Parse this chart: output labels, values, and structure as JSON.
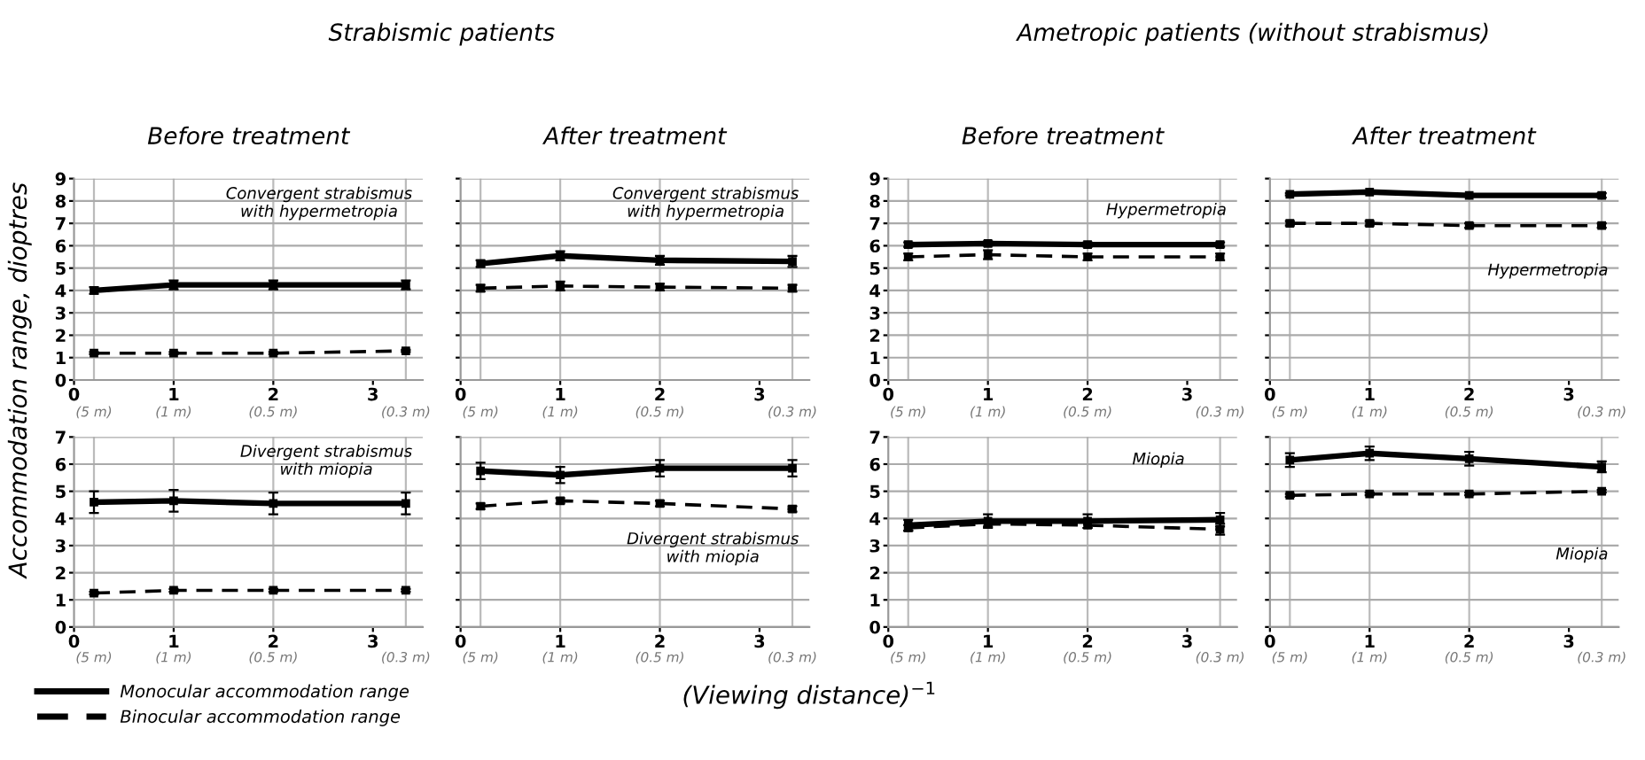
{
  "chart_data": [
    {
      "type": "line",
      "title": "Strabismic patients",
      "subtitle": "Before treatment",
      "ylabel": "Accommodation range, dioptres",
      "annotations": [
        "Convergent strabismus\nwith hypermetropia",
        "(5 m)",
        "(1 m)",
        "(0.5 m)",
        "(0.3 m)"
      ],
      "x": [
        0.2,
        1,
        2,
        3.33
      ],
      "xlim": [
        0,
        3.5
      ],
      "xticks": [
        0,
        1,
        2,
        3
      ],
      "ylim": [
        0,
        9
      ],
      "yticks": [
        0,
        1,
        2,
        3,
        4,
        5,
        6,
        7,
        8,
        9
      ],
      "grid": true,
      "marker": "square",
      "series": [
        {
          "color": "#000000",
          "line_style": "solid",
          "values": [
            4.0,
            4.25,
            4.25,
            4.25
          ],
          "errors": [
            0.15,
            0.2,
            0.2,
            0.2
          ]
        },
        {
          "color": "#000000",
          "line_style": "dashed",
          "values": [
            1.2,
            1.2,
            1.2,
            1.3
          ],
          "errors": [
            0.05,
            0.05,
            0.05,
            0.05
          ]
        }
      ]
    },
    {
      "type": "line",
      "subtitle": "After treatment",
      "annotations": [
        "Convergent strabismus\nwith hypermetropia",
        "(5 m)",
        "(1 m)",
        "(0.5 m)",
        "(0.3 m)"
      ],
      "x": [
        0.2,
        1,
        2,
        3.33
      ],
      "xlim": [
        0,
        3.5
      ],
      "xticks": [
        0,
        1,
        2,
        3
      ],
      "ylim": [
        0,
        9
      ],
      "yticks": [
        0,
        1,
        2,
        3,
        4,
        5,
        6,
        7,
        8,
        9
      ],
      "tick_labels": "x",
      "grid": true,
      "marker": "square",
      "series": [
        {
          "color": "#000000",
          "line_style": "solid",
          "values": [
            5.2,
            5.55,
            5.35,
            5.3
          ],
          "errors": [
            0.15,
            0.2,
            0.2,
            0.25
          ]
        },
        {
          "color": "#000000",
          "line_style": "dashed",
          "values": [
            4.1,
            4.2,
            4.15,
            4.1
          ],
          "errors": [
            0.15,
            0.2,
            0.15,
            0.15
          ]
        }
      ]
    },
    {
      "type": "line",
      "title": "Ametropic patients (without strabismus)",
      "subtitle": "Before treatment",
      "annotations": [
        "Hypermetropia",
        "(5 m)",
        "(1 m)",
        "(0.5 m)",
        "(0.3 m)"
      ],
      "x": [
        0.2,
        1,
        2,
        3.33
      ],
      "xlim": [
        0,
        3.5
      ],
      "xticks": [
        0,
        1,
        2,
        3
      ],
      "ylim": [
        0,
        9
      ],
      "yticks": [
        0,
        1,
        2,
        3,
        4,
        5,
        6,
        7,
        8,
        9
      ],
      "grid": true,
      "marker": "square",
      "series": [
        {
          "color": "#000000",
          "line_style": "solid",
          "values": [
            6.05,
            6.1,
            6.05,
            6.05
          ],
          "errors": [
            0.1,
            0.1,
            0.1,
            0.1
          ]
        },
        {
          "color": "#000000",
          "line_style": "dashed",
          "values": [
            5.5,
            5.6,
            5.5,
            5.5
          ],
          "errors": [
            0.15,
            0.2,
            0.15,
            0.15
          ]
        }
      ]
    },
    {
      "type": "line",
      "subtitle": "After treatment",
      "annotations": [
        "Hypermetropia",
        "(5 m)",
        "(1 m)",
        "(0.5 m)",
        "(0.3 m)"
      ],
      "x": [
        0.2,
        1,
        2,
        3.33
      ],
      "xlim": [
        0,
        3.5
      ],
      "xticks": [
        0,
        1,
        2,
        3
      ],
      "ylim": [
        0,
        9
      ],
      "yticks": [
        0,
        1,
        2,
        3,
        4,
        5,
        6,
        7,
        8,
        9
      ],
      "tick_labels": "x",
      "grid": true,
      "marker": "square",
      "series": [
        {
          "color": "#000000",
          "line_style": "solid",
          "values": [
            8.3,
            8.4,
            8.25,
            8.25
          ],
          "errors": [
            0.05,
            0.05,
            0.05,
            0.1
          ]
        },
        {
          "color": "#000000",
          "line_style": "dashed",
          "values": [
            7.0,
            7.0,
            6.9,
            6.9
          ],
          "errors": [
            0.1,
            0.1,
            0.1,
            0.1
          ]
        }
      ]
    },
    {
      "type": "line",
      "annotations": [
        "Divergent strabismus\nwith miopia",
        "(5 m)",
        "(1 m)",
        "(0.5 m)",
        "(0.3 m)"
      ],
      "x": [
        0.2,
        1,
        2,
        3.33
      ],
      "xlim": [
        0,
        3.5
      ],
      "xticks": [
        0,
        1,
        2,
        3
      ],
      "ylim": [
        0,
        7
      ],
      "yticks": [
        0,
        1,
        2,
        3,
        4,
        5,
        6,
        7
      ],
      "grid": true,
      "marker": "square",
      "legend": "bottom",
      "series": [
        {
          "name": "Monocular accommodation range",
          "color": "#000000",
          "line_style": "solid",
          "values": [
            4.6,
            4.65,
            4.55,
            4.55
          ],
          "errors": [
            0.4,
            0.4,
            0.4,
            0.4
          ]
        },
        {
          "name": "Binocular accommodation range",
          "color": "#000000",
          "line_style": "dashed",
          "values": [
            1.25,
            1.35,
            1.35,
            1.35
          ],
          "errors": [
            0.05,
            0.05,
            0.05,
            0.05
          ]
        }
      ]
    },
    {
      "type": "line",
      "xlabel": "(Viewing distance)$^{−1}$",
      "annotations": [
        "Divergent strabismus\nwith miopia",
        "(5 m)",
        "(1 m)",
        "(0.5 m)",
        "(0.3 m)"
      ],
      "x": [
        0.2,
        1,
        2,
        3.33
      ],
      "xlim": [
        0,
        3.5
      ],
      "xticks": [
        0,
        1,
        2,
        3
      ],
      "ylim": [
        0,
        7
      ],
      "yticks": [
        0,
        1,
        2,
        3,
        4,
        5,
        6,
        7
      ],
      "tick_labels": "x",
      "grid": true,
      "marker": "square",
      "series": [
        {
          "color": "#000000",
          "line_style": "solid",
          "values": [
            5.75,
            5.6,
            5.85,
            5.85
          ],
          "errors": [
            0.3,
            0.3,
            0.3,
            0.3
          ]
        },
        {
          "color": "#000000",
          "line_style": "dashed",
          "values": [
            4.45,
            4.65,
            4.55,
            4.35
          ],
          "errors": [
            0.1,
            0.1,
            0.1,
            0.1
          ]
        }
      ]
    },
    {
      "type": "line",
      "annotations": [
        "Miopia",
        "(5 m)",
        "(1 m)",
        "(0.5 m)",
        "(0.3 m)"
      ],
      "x": [
        0.2,
        1,
        2,
        3.33
      ],
      "xlim": [
        0,
        3.5
      ],
      "xticks": [
        0,
        1,
        2,
        3
      ],
      "ylim": [
        0,
        7
      ],
      "yticks": [
        0,
        1,
        2,
        3,
        4,
        5,
        6,
        7
      ],
      "grid": true,
      "marker": "square",
      "series": [
        {
          "color": "#000000",
          "line_style": "solid",
          "values": [
            3.75,
            3.9,
            3.9,
            3.95
          ],
          "errors": [
            0.2,
            0.25,
            0.25,
            0.25
          ]
        },
        {
          "color": "#000000",
          "line_style": "dashed",
          "values": [
            3.65,
            3.8,
            3.75,
            3.6
          ],
          "errors": [
            0.1,
            0.1,
            0.1,
            0.2
          ]
        }
      ]
    },
    {
      "type": "line",
      "annotations": [
        "Miopia",
        "(5 m)",
        "(1 m)",
        "(0.5 m)",
        "(0.3 m)"
      ],
      "x": [
        0.2,
        1,
        2,
        3.33
      ],
      "xlim": [
        0,
        3.5
      ],
      "xticks": [
        0,
        1,
        2,
        3
      ],
      "ylim": [
        0,
        7
      ],
      "yticks": [
        0,
        1,
        2,
        3,
        4,
        5,
        6,
        7
      ],
      "tick_labels": "x",
      "grid": true,
      "marker": "square",
      "series": [
        {
          "color": "#000000",
          "line_style": "solid",
          "values": [
            6.15,
            6.4,
            6.2,
            5.9
          ],
          "errors": [
            0.25,
            0.25,
            0.25,
            0.2
          ]
        },
        {
          "color": "#000000",
          "line_style": "dashed",
          "values": [
            4.85,
            4.9,
            4.9,
            5.0
          ],
          "errors": [
            0.05,
            0.05,
            0.05,
            0.05
          ]
        }
      ]
    }
  ]
}
